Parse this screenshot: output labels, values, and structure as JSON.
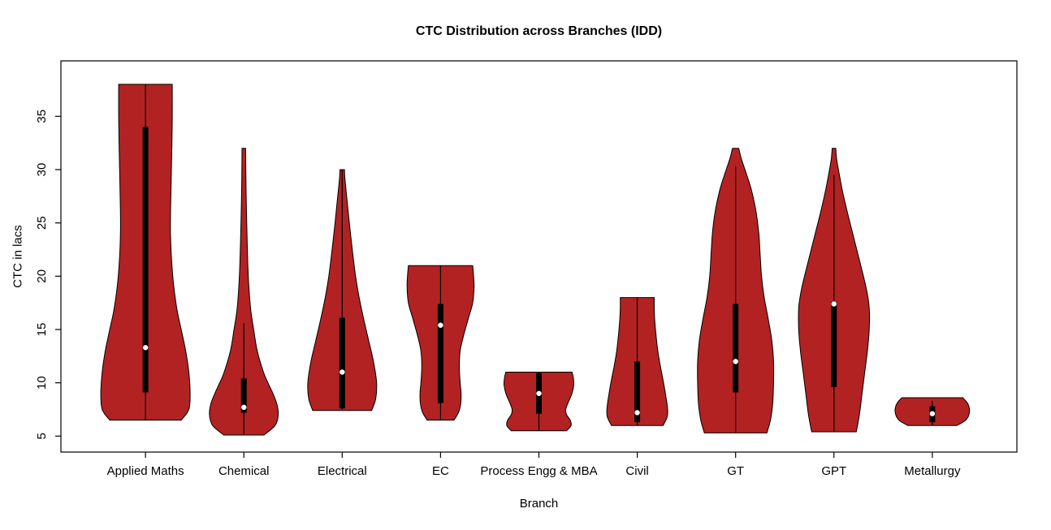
{
  "title": "CTC Distribution across Branches (IDD)",
  "xlabel": "Branch",
  "ylabel": "CTC in lacs",
  "colors": {
    "violin_fill": "#B22222",
    "violin_stroke": "#000000",
    "box_fill": "#000000",
    "median_dot": "#FFFFFF",
    "axis": "#000000",
    "background": "#FFFFFF"
  },
  "chart_data": {
    "type": "violin",
    "title": "CTC Distribution across Branches (IDD)",
    "xlabel": "Branch",
    "ylabel": "CTC in lacs",
    "ylim": [
      3.5,
      40.2
    ],
    "y_ticks": [
      5,
      10,
      15,
      20,
      25,
      30,
      35
    ],
    "grid": false,
    "legend": "none",
    "categories": [
      "Applied Maths",
      "Chemical",
      "Electrical",
      "EC",
      "Process Engg & MBA",
      "Civil",
      "GT",
      "GPT",
      "Metallurgy"
    ],
    "series": [
      {
        "name": "Applied Maths",
        "min": 6.5,
        "max": 38,
        "q1": 9.1,
        "q3": 34.0,
        "median": 13.3,
        "whisker": [
          6.5,
          38
        ],
        "profile": [
          [
            6.5,
            0.8
          ],
          [
            7.5,
            0.97
          ],
          [
            9,
            1.0
          ],
          [
            11,
            0.97
          ],
          [
            13,
            0.9
          ],
          [
            15,
            0.8
          ],
          [
            17,
            0.7
          ],
          [
            20,
            0.61
          ],
          [
            24,
            0.56
          ],
          [
            28,
            0.57
          ],
          [
            32,
            0.59
          ],
          [
            35,
            0.6
          ],
          [
            38,
            0.6
          ]
        ]
      },
      {
        "name": "Chemical",
        "min": 5.1,
        "max": 32,
        "q1": 7.2,
        "q3": 10.4,
        "median": 7.7,
        "whisker": [
          5.2,
          15.6
        ],
        "profile": [
          [
            5.1,
            0.45
          ],
          [
            6,
            0.7
          ],
          [
            7,
            0.77
          ],
          [
            8,
            0.74
          ],
          [
            9,
            0.65
          ],
          [
            10,
            0.54
          ],
          [
            11,
            0.44
          ],
          [
            13,
            0.3
          ],
          [
            15,
            0.22
          ],
          [
            17,
            0.15
          ],
          [
            20,
            0.1
          ],
          [
            24,
            0.07
          ],
          [
            28,
            0.05
          ],
          [
            32,
            0.04
          ]
        ]
      },
      {
        "name": "Electrical",
        "min": 7.4,
        "max": 30,
        "q1": 7.6,
        "q3": 16.1,
        "median": 11.0,
        "whisker": [
          7.5,
          30
        ],
        "profile": [
          [
            7.4,
            0.66
          ],
          [
            8.5,
            0.75
          ],
          [
            10,
            0.77
          ],
          [
            12,
            0.7
          ],
          [
            14,
            0.59
          ],
          [
            16,
            0.48
          ],
          [
            18,
            0.38
          ],
          [
            20,
            0.3
          ],
          [
            22,
            0.24
          ],
          [
            25,
            0.16
          ],
          [
            27.5,
            0.1
          ],
          [
            29.2,
            0.06
          ],
          [
            30,
            0.05
          ]
        ]
      },
      {
        "name": "EC",
        "min": 6.5,
        "max": 21,
        "q1": 8.1,
        "q3": 17.4,
        "median": 15.4,
        "whisker": [
          6.5,
          21
        ],
        "profile": [
          [
            6.5,
            0.3
          ],
          [
            7.2,
            0.4
          ],
          [
            8,
            0.45
          ],
          [
            9,
            0.46
          ],
          [
            10,
            0.44
          ],
          [
            11.5,
            0.42
          ],
          [
            13,
            0.44
          ],
          [
            14.5,
            0.52
          ],
          [
            16,
            0.62
          ],
          [
            17.5,
            0.72
          ],
          [
            19,
            0.75
          ],
          [
            20,
            0.74
          ],
          [
            21,
            0.72
          ]
        ]
      },
      {
        "name": "Process Engg & MBA",
        "min": 5.5,
        "max": 11,
        "q1": 7.1,
        "q3": 10.9,
        "median": 9.0,
        "whisker": [
          5.5,
          11
        ],
        "profile": [
          [
            5.5,
            0.62
          ],
          [
            6,
            0.72
          ],
          [
            6.5,
            0.7
          ],
          [
            7,
            0.62
          ],
          [
            7.5,
            0.6
          ],
          [
            8,
            0.64
          ],
          [
            9,
            0.74
          ],
          [
            9.8,
            0.78
          ],
          [
            10.5,
            0.77
          ],
          [
            11,
            0.74
          ]
        ]
      },
      {
        "name": "Civil",
        "min": 6,
        "max": 18,
        "q1": 6.3,
        "q3": 12.0,
        "median": 7.2,
        "whisker": [
          6,
          18
        ],
        "profile": [
          [
            6,
            0.58
          ],
          [
            6.8,
            0.67
          ],
          [
            7.5,
            0.68
          ],
          [
            8.5,
            0.65
          ],
          [
            10,
            0.59
          ],
          [
            11.5,
            0.52
          ],
          [
            13,
            0.46
          ],
          [
            14.5,
            0.42
          ],
          [
            16,
            0.39
          ],
          [
            17,
            0.38
          ],
          [
            18,
            0.38
          ]
        ]
      },
      {
        "name": "GT",
        "min": 5.3,
        "max": 32,
        "q1": 9.1,
        "q3": 17.4,
        "median": 12.0,
        "whisker": [
          5.3,
          30.3
        ],
        "profile": [
          [
            5.3,
            0.7
          ],
          [
            6.5,
            0.78
          ],
          [
            8,
            0.83
          ],
          [
            10,
            0.85
          ],
          [
            12,
            0.85
          ],
          [
            14,
            0.81
          ],
          [
            16,
            0.73
          ],
          [
            18,
            0.64
          ],
          [
            20,
            0.58
          ],
          [
            22,
            0.55
          ],
          [
            24,
            0.52
          ],
          [
            26,
            0.46
          ],
          [
            28,
            0.36
          ],
          [
            29.5,
            0.25
          ],
          [
            31,
            0.13
          ],
          [
            32,
            0.07
          ]
        ]
      },
      {
        "name": "GPT",
        "min": 5.4,
        "max": 32,
        "q1": 9.6,
        "q3": 17.6,
        "median": 17.4,
        "whisker": [
          5.4,
          29.5
        ],
        "profile": [
          [
            5.4,
            0.5
          ],
          [
            7,
            0.57
          ],
          [
            9,
            0.63
          ],
          [
            11,
            0.69
          ],
          [
            13,
            0.75
          ],
          [
            15,
            0.79
          ],
          [
            17,
            0.79
          ],
          [
            18.5,
            0.74
          ],
          [
            20,
            0.66
          ],
          [
            22,
            0.54
          ],
          [
            24,
            0.42
          ],
          [
            26,
            0.3
          ],
          [
            28,
            0.19
          ],
          [
            30,
            0.1
          ],
          [
            31,
            0.06
          ],
          [
            32,
            0.04
          ]
        ]
      },
      {
        "name": "Metallurgy",
        "min": 6,
        "max": 8.6,
        "q1": 6.3,
        "q3": 7.8,
        "median": 7.1,
        "whisker": [
          6,
          8.3
        ],
        "profile": [
          [
            6,
            0.55
          ],
          [
            6.4,
            0.72
          ],
          [
            6.8,
            0.8
          ],
          [
            7.2,
            0.83
          ],
          [
            7.6,
            0.83
          ],
          [
            8,
            0.8
          ],
          [
            8.3,
            0.75
          ],
          [
            8.6,
            0.68
          ]
        ]
      }
    ]
  }
}
